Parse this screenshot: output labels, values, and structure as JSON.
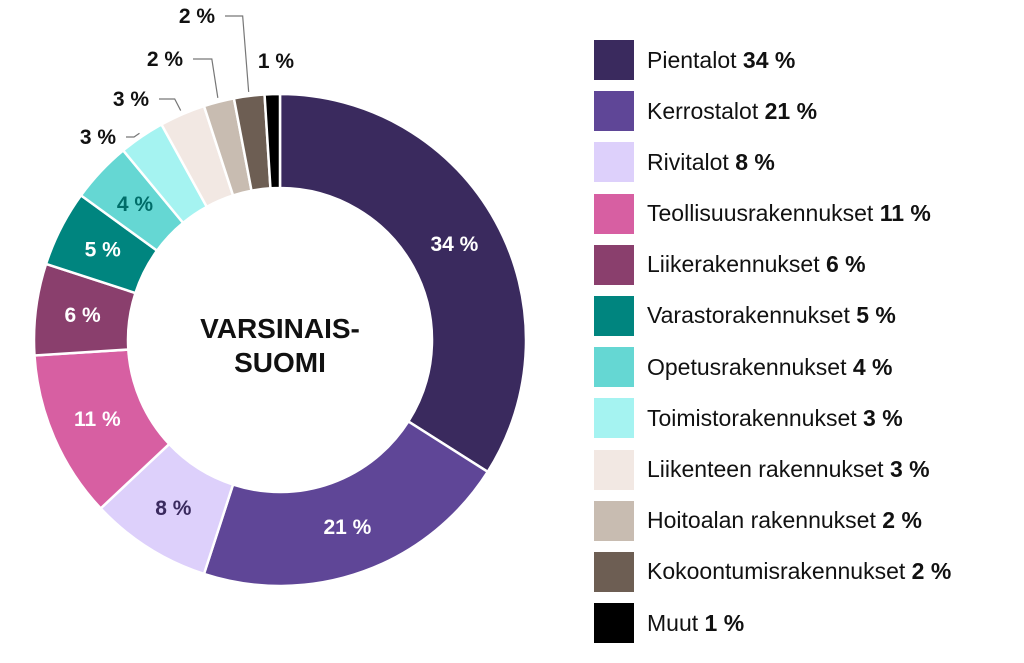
{
  "chart_data": {
    "type": "pie",
    "center_label": "VARSINAIS-\nSUOMI",
    "slices": [
      {
        "label": "Pientalot",
        "value": 34,
        "display": "34 %",
        "color": "#3a2a5e",
        "label_color": "#ffffff"
      },
      {
        "label": "Kerrostalot",
        "value": 21,
        "display": "21 %",
        "color": "#5f4697",
        "label_color": "#ffffff"
      },
      {
        "label": "Rivitalot",
        "value": 8,
        "display": "8 %",
        "color": "#ddd0fb",
        "label_color": "#3a2a5e"
      },
      {
        "label": "Teollisuusrakennukset",
        "value": 11,
        "display": "11 %",
        "color": "#d75fa2",
        "label_color": "#ffffff"
      },
      {
        "label": "Liikerakennukset",
        "value": 6,
        "display": "6 %",
        "color": "#8a3f6d",
        "label_color": "#ffffff"
      },
      {
        "label": "Varastorakennukset",
        "value": 5,
        "display": "5 %",
        "color": "#00857f",
        "label_color": "#ffffff"
      },
      {
        "label": "Opetusrakennukset",
        "value": 4,
        "display": "4 %",
        "color": "#65d7d3",
        "label_color": "#006d69"
      },
      {
        "label": "Toimistorakennukset",
        "value": 3,
        "display": "3 %",
        "color": "#a5f3f1",
        "label_color": "#111111"
      },
      {
        "label": "Liikenteen rakennukset",
        "value": 3,
        "display": "3 %",
        "color": "#f2e8e3",
        "label_color": "#111111"
      },
      {
        "label": "Hoitoalan rakennukset",
        "value": 2,
        "display": "2 %",
        "color": "#c8bcb1",
        "label_color": "#111111"
      },
      {
        "label": "Kokoontumisrakennukset",
        "value": 2,
        "display": "2 %",
        "color": "#6d5e53",
        "label_color": "#111111"
      },
      {
        "label": "Muut",
        "value": 1,
        "display": "1 %",
        "color": "#000000",
        "label_color": "#111111"
      }
    ],
    "legend_position": "right"
  }
}
